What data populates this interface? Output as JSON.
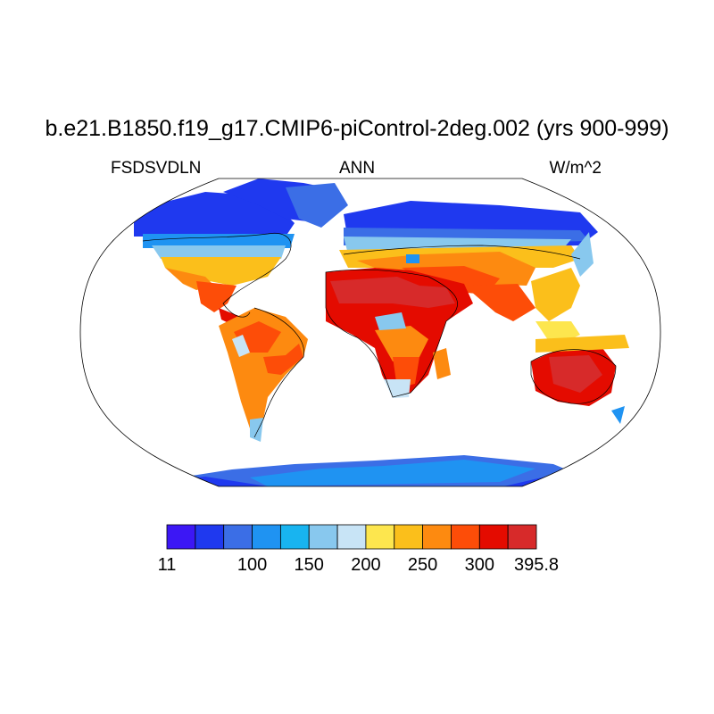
{
  "title": "b.e21.B1850.f19_g17.CMIP6-piControl-2deg.002 (yrs 900-999)",
  "subtitle_left": "FSDSVDLN",
  "subtitle_center": "ANN",
  "subtitle_right": "W/m^2",
  "projection": "robinson",
  "colorbar": {
    "colors": [
      "#3c17f5",
      "#1f39ef",
      "#3b6ee6",
      "#1f93f2",
      "#18b4f0",
      "#88c8ee",
      "#c8e4f6",
      "#fde64e",
      "#fbbf1b",
      "#fd8a10",
      "#fd4d08",
      "#e40b00",
      "#d72a2a"
    ],
    "labels": [
      "11",
      "100",
      "150",
      "200",
      "250",
      "300",
      "395.8"
    ],
    "label_positions": [
      0,
      3,
      5,
      7,
      9,
      11,
      13
    ]
  }
}
